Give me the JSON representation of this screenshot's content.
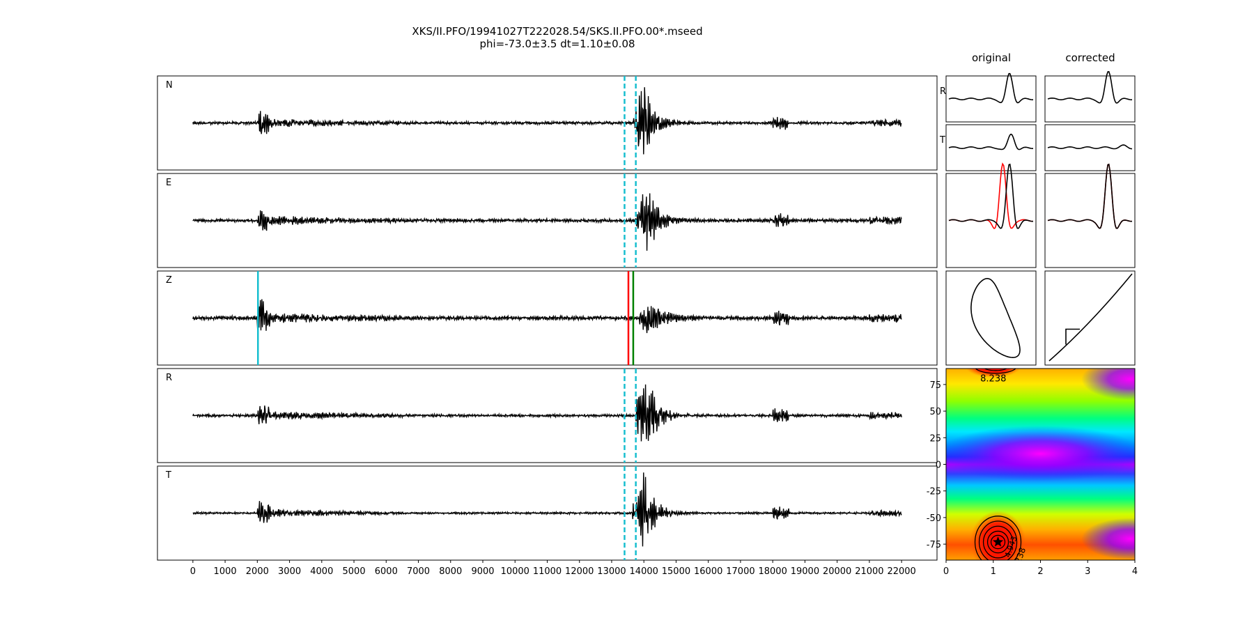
{
  "figure": {
    "title_line1": "XKS/II.PFO/19941027T222028.54/SKS.II.PFO.00*.mseed",
    "title_line2": "phi=-73.0±3.5 dt=1.10±0.08"
  },
  "chart_data": [
    {
      "type": "line",
      "name": "traces",
      "panels": [
        "N",
        "E",
        "Z",
        "R",
        "T"
      ],
      "xlim": [
        -1100,
        23100
      ],
      "xticks": [
        0,
        1000,
        2000,
        3000,
        4000,
        5000,
        6000,
        7000,
        8000,
        9000,
        10000,
        11000,
        12000,
        13000,
        14000,
        15000,
        16000,
        17000,
        18000,
        19000,
        20000,
        21000,
        22000
      ],
      "trace_x_range": [
        0,
        22000
      ],
      "phase_picks": [
        {
          "panel": "Z",
          "x": 2020,
          "color": "#17becf"
        },
        {
          "panel": "Z",
          "x": 13520,
          "color": "#ff0000"
        },
        {
          "panel": "Z",
          "x": 13670,
          "color": "#008000"
        }
      ],
      "window_lines": {
        "panels": [
          "N",
          "E",
          "R",
          "T"
        ],
        "x": [
          13400,
          13750
        ],
        "color": "#17becf",
        "style": "dashed"
      },
      "grid": false
    },
    {
      "type": "line",
      "name": "particle-panels",
      "columns": [
        "original",
        "corrected"
      ],
      "rows": [
        "R",
        "T",
        "",
        ""
      ]
    },
    {
      "type": "heatmap",
      "name": "error-surface",
      "xlim": [
        0,
        4
      ],
      "ylim": [
        -90,
        90
      ],
      "xticks": [
        0,
        1,
        2,
        3,
        4
      ],
      "yticks": [
        75,
        50,
        25,
        0,
        -25,
        -50,
        -75
      ],
      "colormap": "gist_rainbow",
      "best_fit": {
        "dt": 1.1,
        "phi": -73.0
      },
      "contour_labels": [
        "8.238",
        "8.238",
        "4.943"
      ]
    }
  ]
}
